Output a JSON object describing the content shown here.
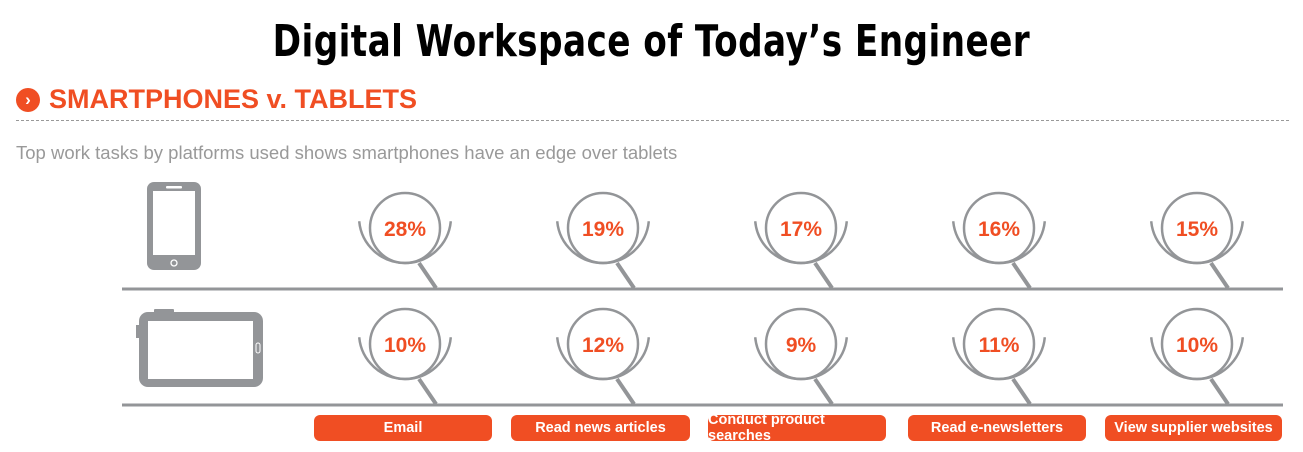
{
  "title": "Digital Workspace of Today’s Engineer",
  "section_title": "SMARTPHONES v. TABLETS",
  "subtitle": "Top work tasks by platforms used shows smartphones have an edge over tablets",
  "colors": {
    "accent": "#f04e23",
    "gray": "#939598"
  },
  "chart_data": {
    "type": "table",
    "title": "SMARTPHONES v. TABLETS",
    "categories": [
      "Email",
      "Read news articles",
      "Conduct product searches",
      "Read e-newsletters",
      "View supplier websites"
    ],
    "series": [
      {
        "name": "Smartphone",
        "icon": "smartphone-icon",
        "values": [
          28,
          19,
          17,
          16,
          15
        ],
        "labels": [
          "28%",
          "19%",
          "17%",
          "16%",
          "15%"
        ]
      },
      {
        "name": "Tablet",
        "icon": "tablet-icon",
        "values": [
          10,
          12,
          9,
          11,
          10
        ],
        "labels": [
          "10%",
          "12%",
          "9%",
          "11%",
          "10%"
        ]
      }
    ],
    "unit": "%"
  }
}
